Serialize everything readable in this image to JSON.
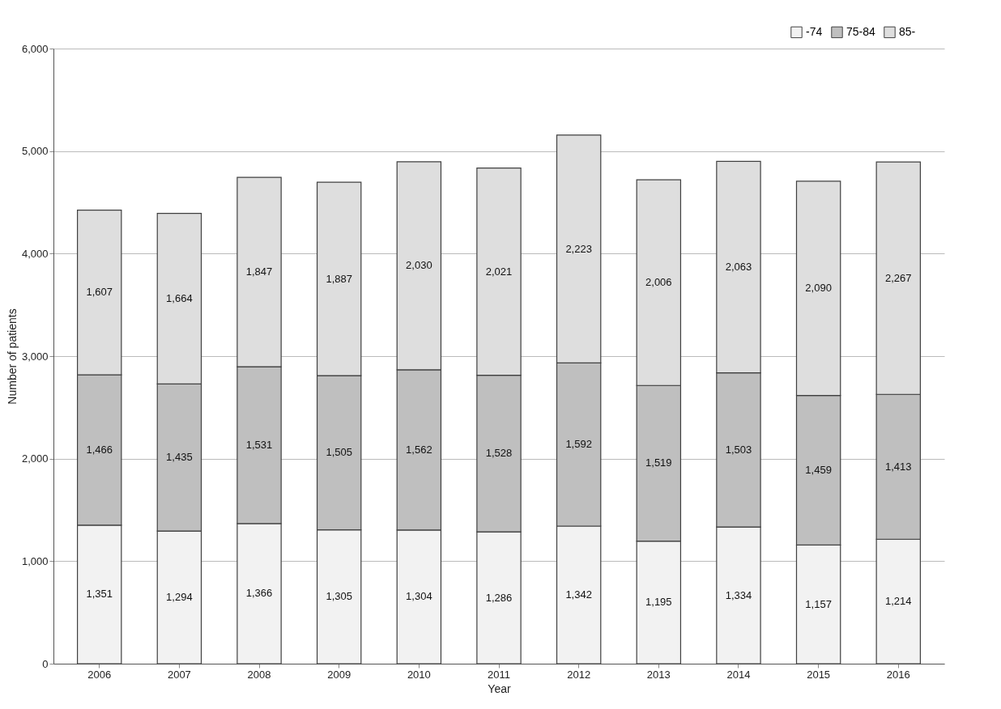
{
  "chart_data": {
    "type": "bar",
    "stacked": true,
    "xlabel": "Year",
    "ylabel": "Number of patients",
    "categories": [
      "2006",
      "2007",
      "2008",
      "2009",
      "2010",
      "2011",
      "2012",
      "2013",
      "2014",
      "2015",
      "2016"
    ],
    "series": [
      {
        "name": "-74",
        "color": "#f2f2f2",
        "values": [
          1351,
          1294,
          1366,
          1305,
          1304,
          1286,
          1342,
          1195,
          1334,
          1157,
          1214
        ],
        "value_labels": [
          "1,351",
          "1,294",
          "1,366",
          "1,305",
          "1,304",
          "1,286",
          "1,342",
          "1,195",
          "1,334",
          "1,157",
          "1,214"
        ]
      },
      {
        "name": "75-84",
        "color": "#bfbfbf",
        "values": [
          1466,
          1435,
          1531,
          1505,
          1562,
          1528,
          1592,
          1519,
          1503,
          1459,
          1413
        ],
        "value_labels": [
          "1,466",
          "1,435",
          "1,531",
          "1,505",
          "1,562",
          "1,528",
          "1,592",
          "1,519",
          "1,503",
          "1,459",
          "1,413"
        ]
      },
      {
        "name": "85-",
        "color": "#dedede",
        "values": [
          1607,
          1664,
          1847,
          1887,
          2030,
          2021,
          2223,
          2006,
          2063,
          2090,
          2267
        ],
        "value_labels": [
          "1,607",
          "1,664",
          "1,847",
          "1,887",
          "2,030",
          "2,021",
          "2,223",
          "2,006",
          "2,063",
          "2,090",
          "2,267"
        ]
      }
    ],
    "ylim": [
      0,
      6000
    ],
    "yticks": [
      0,
      {
        "value": 1000,
        "label": "1,000"
      },
      {
        "value": 2000,
        "label": "2,000"
      },
      {
        "value": 3000,
        "label": "3,000"
      },
      {
        "value": 4000,
        "label": "4,000"
      },
      {
        "value": 5000,
        "label": "5,000"
      },
      {
        "value": 6000,
        "label": "6,000"
      }
    ],
    "grid": "y",
    "legend": "top right"
  }
}
